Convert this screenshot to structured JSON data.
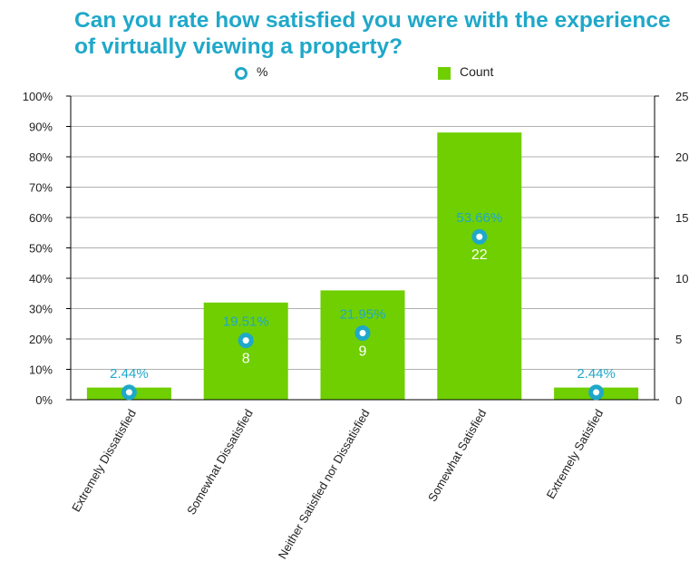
{
  "chart_data": {
    "type": "bar",
    "title": "Can you rate how satisfied you were with the experience of virtually viewing a property?",
    "categories": [
      "Extremely Dissatisfied",
      "Somewhat Dissatisfied",
      "Neither Satisfied nor Dissatisfied",
      "Somewhat Satisfied",
      "Extremely Satisfied"
    ],
    "series": [
      {
        "name": "Count",
        "axis": "right",
        "values": [
          1,
          8,
          9,
          22,
          1
        ],
        "labels": [
          "",
          "8",
          "9",
          "22",
          ""
        ]
      },
      {
        "name": "%",
        "axis": "left",
        "values": [
          2.44,
          19.51,
          21.95,
          53.66,
          2.44
        ],
        "labels": [
          "2.44%",
          "19.51%",
          "21.95%",
          "53.66%",
          "2.44%"
        ]
      }
    ],
    "left_axis": {
      "ylim": [
        0,
        100
      ],
      "ticks": [
        0,
        10,
        20,
        30,
        40,
        50,
        60,
        70,
        80,
        90,
        100
      ],
      "tick_labels": [
        "0%",
        "10%",
        "20%",
        "30%",
        "40%",
        "50%",
        "60%",
        "70%",
        "80%",
        "90%",
        "100%"
      ]
    },
    "right_axis": {
      "ylim": [
        0,
        25
      ],
      "ticks": [
        0,
        5,
        10,
        15,
        20,
        25
      ],
      "tick_labels": [
        "0",
        "5",
        "10",
        "15",
        "20",
        "25"
      ]
    },
    "legend": {
      "position": "top",
      "items": [
        {
          "label": "%",
          "marker": "ring"
        },
        {
          "label": "Count",
          "marker": "square"
        }
      ]
    },
    "colors": {
      "bar": "#6fcf00",
      "marker": "#1fa8c9",
      "pct_label": "#1fa8c9",
      "count_label": "#ffffff",
      "grid": "#b0b0b0",
      "axis": "#000000",
      "title": "#1fa8c9"
    },
    "grid": true
  }
}
